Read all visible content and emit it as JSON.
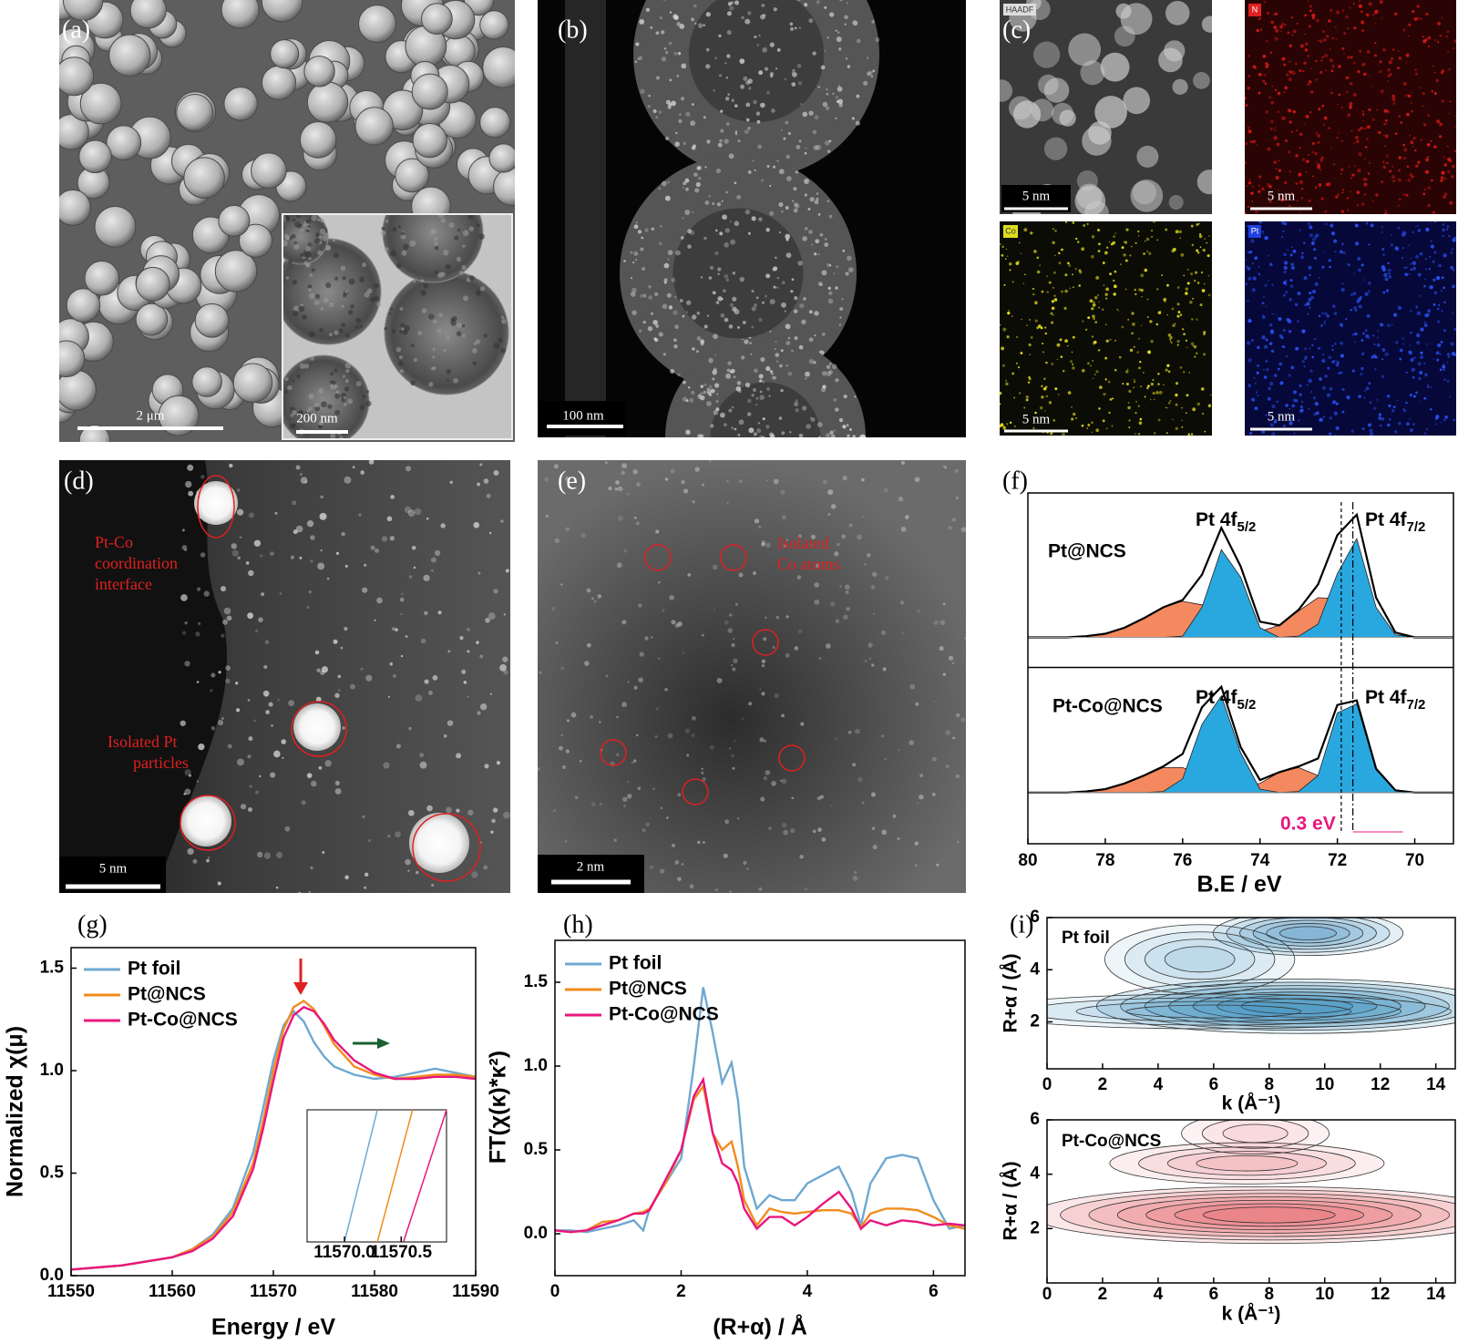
{
  "panels": {
    "a": {
      "label": "(a)",
      "scale_bar": "2 μm",
      "inset_scale_bar": "200 nm"
    },
    "b": {
      "label": "(b)",
      "scale_bar": "100 nm"
    },
    "c": {
      "label": "(c)",
      "maps": [
        {
          "tag": "HAADF",
          "scale_bar": "5 nm"
        },
        {
          "tag": "N",
          "scale_bar": "5 nm"
        },
        {
          "tag": "Co",
          "scale_bar": "5 nm"
        },
        {
          "tag": "Pt",
          "scale_bar": "5 nm"
        }
      ]
    },
    "d": {
      "label": "(d)",
      "scale_bar": "5 nm",
      "annotations": [
        {
          "lines": [
            "Pt-Co",
            "coordination",
            "interface"
          ]
        },
        {
          "lines": [
            "Isolated Pt",
            "particles"
          ]
        }
      ]
    },
    "e": {
      "label": "(e)",
      "scale_bar": "2 nm",
      "annotations": [
        {
          "lines": [
            "Isolated",
            "Co atoms"
          ]
        }
      ]
    }
  },
  "chart_data": [
    {
      "type": "xps",
      "panel_label": "(f)",
      "xlabel": "B.E / eV",
      "xlim": [
        80,
        69
      ],
      "xticks": [
        80,
        78,
        76,
        74,
        72,
        70
      ],
      "x": [
        80,
        79.5,
        79,
        78.5,
        78,
        77.5,
        77,
        76.5,
        76,
        75.5,
        75,
        74.5,
        74,
        73.5,
        73,
        72.5,
        72,
        71.5,
        71,
        70.5,
        70,
        69.5,
        69
      ],
      "panels": [
        {
          "name": "Pt@NCS",
          "ylim": [
            -0.25,
            1.2
          ],
          "peak_labels": [
            {
              "text": "Pt 4f",
              "sub": "5/2"
            },
            {
              "text": "Pt 4f",
              "sub": "7/2"
            }
          ],
          "series": [
            {
              "color": "#f4895f",
              "values": [
                0,
                0,
                0,
                0.01,
                0.03,
                0.08,
                0.16,
                0.25,
                0.3,
                0.27,
                0.18,
                0.09,
                0.05,
                0.1,
                0.22,
                0.33,
                0.32,
                0.2,
                0.08,
                0.02,
                0,
                0,
                0
              ]
            },
            {
              "color": "#29a8df",
              "values": [
                0,
                0,
                0,
                0,
                0,
                0,
                0,
                0,
                0.01,
                0.25,
                0.73,
                0.5,
                0.08,
                0,
                0.01,
                0.11,
                0.53,
                0.82,
                0.25,
                0.02,
                0,
                0,
                0
              ]
            },
            {
              "color": "#000000",
              "values": [
                0,
                0,
                0,
                0.01,
                0.03,
                0.08,
                0.16,
                0.25,
                0.31,
                0.52,
                0.91,
                0.59,
                0.13,
                0.1,
                0.23,
                0.44,
                0.85,
                1.02,
                0.33,
                0.04,
                0,
                0,
                0
              ]
            }
          ]
        },
        {
          "name": "Pt-Co@NCS",
          "ylim": [
            -0.45,
            1.1
          ],
          "peak_labels": [
            {
              "text": "Pt 4f",
              "sub": "5/2"
            },
            {
              "text": "Pt 4f",
              "sub": "7/2"
            }
          ],
          "series": [
            {
              "color": "#f4895f",
              "values": [
                0,
                0,
                0,
                0.01,
                0.03,
                0.08,
                0.15,
                0.22,
                0.22,
                0.15,
                0.08,
                0.05,
                0.08,
                0.18,
                0.22,
                0.15,
                0.07,
                0.03,
                0.01,
                0,
                0,
                0,
                0
              ]
            },
            {
              "color": "#29a8df",
              "values": [
                0,
                0,
                0,
                0,
                0,
                0,
                0,
                0.01,
                0.12,
                0.6,
                0.85,
                0.35,
                0.03,
                0,
                0.01,
                0.15,
                0.7,
                0.78,
                0.2,
                0.02,
                0,
                0,
                0
              ]
            },
            {
              "color": "#000000",
              "values": [
                0,
                0,
                0,
                0.01,
                0.03,
                0.08,
                0.15,
                0.23,
                0.34,
                0.75,
                0.93,
                0.4,
                0.11,
                0.18,
                0.23,
                0.3,
                0.77,
                0.81,
                0.21,
                0.02,
                0,
                0,
                0
              ]
            }
          ]
        }
      ],
      "reference_lines": [
        71.9,
        71.6
      ],
      "annotation": "0.3 eV",
      "annotation_color": "#e8177d"
    },
    {
      "type": "line",
      "panel_label": "(g)",
      "xlabel": "Energy / eV",
      "ylabel": "Normalized χ(μ)",
      "xlim": [
        11550,
        11590
      ],
      "xticks": [
        11550,
        11560,
        11570,
        11580,
        11590
      ],
      "ylim": [
        0,
        1.6
      ],
      "yticks": [
        {
          "value": 0,
          "label": "0.0"
        },
        0.5,
        {
          "value": 1,
          "label": "1.0"
        },
        1.5
      ],
      "legend": "upper left",
      "x": [
        11550,
        11555,
        11560,
        11562,
        11564,
        11566,
        11568,
        11569,
        11570,
        11571,
        11572,
        11573,
        11574,
        11575,
        11576,
        11578,
        11580,
        11582,
        11584,
        11586,
        11588,
        11590
      ],
      "series": [
        {
          "name": "Pt foil",
          "color": "#6fa8d0",
          "values": [
            0.03,
            0.05,
            0.09,
            0.13,
            0.2,
            0.33,
            0.6,
            0.82,
            1.05,
            1.22,
            1.29,
            1.24,
            1.14,
            1.07,
            1.02,
            0.98,
            0.96,
            0.97,
            0.99,
            1.01,
            0.99,
            0.97
          ]
        },
        {
          "name": "Pt@NCS",
          "color": "#f28c1e",
          "values": [
            0.03,
            0.05,
            0.09,
            0.13,
            0.19,
            0.31,
            0.55,
            0.76,
            1.0,
            1.2,
            1.31,
            1.34,
            1.3,
            1.22,
            1.13,
            1.02,
            0.98,
            0.96,
            0.97,
            0.98,
            0.98,
            0.97
          ]
        },
        {
          "name": "Pt-Co@NCS",
          "color": "#e8177d",
          "values": [
            0.03,
            0.05,
            0.09,
            0.12,
            0.18,
            0.29,
            0.52,
            0.72,
            0.95,
            1.16,
            1.27,
            1.31,
            1.29,
            1.23,
            1.15,
            1.05,
            0.99,
            0.96,
            0.96,
            0.97,
            0.97,
            0.96
          ]
        }
      ],
      "inset": {
        "xlim": [
          11569.67,
          11570.9
        ],
        "xticks": [
          {
            "value": 11570,
            "label": "11570.0"
          },
          11570.5
        ],
        "ylim": [
          0.7,
          0.8
        ],
        "series": [
          {
            "color": "#6fa8d0",
            "x": [
              11570.0,
              11570.29
            ],
            "values": [
              0.7,
              0.8
            ]
          },
          {
            "color": "#f28c1e",
            "x": [
              11570.29,
              11570.6
            ],
            "values": [
              0.7,
              0.8
            ]
          },
          {
            "color": "#e8177d",
            "x": [
              11570.52,
              11570.9
            ],
            "values": [
              0.7,
              0.8
            ]
          }
        ]
      }
    },
    {
      "type": "line",
      "panel_label": "(h)",
      "xlabel": "(R+α) / Å",
      "ylabel": "FT(χ(κ)*κ²)",
      "xlim": [
        0,
        6.5
      ],
      "xticks": [
        0,
        2,
        4,
        6
      ],
      "ylim": [
        -0.25,
        1.75
      ],
      "yticks": [
        {
          "value": 0,
          "label": "0.0"
        },
        0.5,
        {
          "value": 1,
          "label": "1.0"
        },
        1.5
      ],
      "legend": "upper left",
      "x": [
        0,
        0.25,
        0.5,
        0.75,
        1.0,
        1.25,
        1.4,
        1.5,
        1.75,
        2.0,
        2.2,
        2.35,
        2.5,
        2.65,
        2.8,
        2.9,
        3.0,
        3.2,
        3.4,
        3.6,
        3.8,
        4.0,
        4.25,
        4.5,
        4.7,
        4.85,
        5.0,
        5.25,
        5.5,
        5.75,
        6.0,
        6.25,
        6.5
      ],
      "series": [
        {
          "name": "Pt foil",
          "color": "#6fa8d0",
          "values": [
            0.02,
            0.02,
            0.01,
            0.03,
            0.05,
            0.08,
            0.02,
            0.15,
            0.3,
            0.45,
            1.0,
            1.47,
            1.2,
            0.9,
            1.02,
            0.8,
            0.4,
            0.15,
            0.23,
            0.2,
            0.2,
            0.3,
            0.35,
            0.4,
            0.25,
            0.05,
            0.3,
            0.45,
            0.47,
            0.45,
            0.2,
            0.03,
            0.05
          ]
        },
        {
          "name": "Pt@NCS",
          "color": "#f28c1e",
          "values": [
            0.02,
            0.01,
            0.02,
            0.07,
            0.08,
            0.12,
            0.13,
            0.15,
            0.3,
            0.5,
            0.8,
            0.88,
            0.6,
            0.5,
            0.55,
            0.4,
            0.2,
            0.05,
            0.15,
            0.13,
            0.12,
            0.13,
            0.14,
            0.14,
            0.12,
            0.04,
            0.12,
            0.15,
            0.15,
            0.14,
            0.1,
            0.05,
            0.03
          ]
        },
        {
          "name": "Pt-Co@NCS",
          "color": "#e8177d",
          "values": [
            0.02,
            0.01,
            0.02,
            0.05,
            0.08,
            0.12,
            0.12,
            0.14,
            0.32,
            0.5,
            0.82,
            0.92,
            0.6,
            0.42,
            0.38,
            0.3,
            0.15,
            0.03,
            0.1,
            0.1,
            0.05,
            0.1,
            0.18,
            0.25,
            0.15,
            0.03,
            0.08,
            0.05,
            0.08,
            0.07,
            0.05,
            0.06,
            0.05
          ]
        }
      ]
    },
    {
      "type": "contour",
      "panel_label": "(i)",
      "title": "Pt foil",
      "color": "#1f7fb4",
      "xlabel": "k (Å⁻¹)",
      "ylabel": "R+α / (Å)",
      "xlim": [
        0,
        14.7
      ],
      "xticks": [
        0,
        2,
        4,
        6,
        8,
        10,
        12,
        14
      ],
      "ylim": [
        0.2,
        6
      ],
      "yticks": [
        2,
        4,
        6
      ],
      "blobs": [
        {
          "x": 9,
          "y": 2.6,
          "sx": 3.8,
          "sy": 0.55,
          "intensity": 1
        },
        {
          "x": 9.4,
          "y": 5.4,
          "sx": 1.8,
          "sy": 0.45,
          "intensity": 0.8
        },
        {
          "x": 5.5,
          "y": 4.4,
          "sx": 1.8,
          "sy": 0.7,
          "intensity": 0.3
        },
        {
          "x": 6,
          "y": 2.4,
          "sx": 4.5,
          "sy": 0.35,
          "intensity": 0.4
        }
      ]
    },
    {
      "type": "contour",
      "title": "Pt-Co@NCS",
      "color": "#e23b45",
      "xlabel": "k (Å⁻¹)",
      "ylabel": "R+α / (Å)",
      "xlim": [
        0,
        14.7
      ],
      "xticks": [
        0,
        2,
        4,
        6,
        8,
        10,
        12,
        14
      ],
      "ylim": [
        0,
        6
      ],
      "yticks": [
        2,
        4,
        6
      ],
      "blobs": [
        {
          "x": 8,
          "y": 2.5,
          "sx": 4.5,
          "sy": 0.55,
          "intensity": 0.9
        },
        {
          "x": 7.2,
          "y": 4.4,
          "sx": 2.6,
          "sy": 0.4,
          "intensity": 0.4
        },
        {
          "x": 7.5,
          "y": 5.5,
          "sx": 1.4,
          "sy": 0.4,
          "intensity": 0.2
        }
      ]
    }
  ]
}
